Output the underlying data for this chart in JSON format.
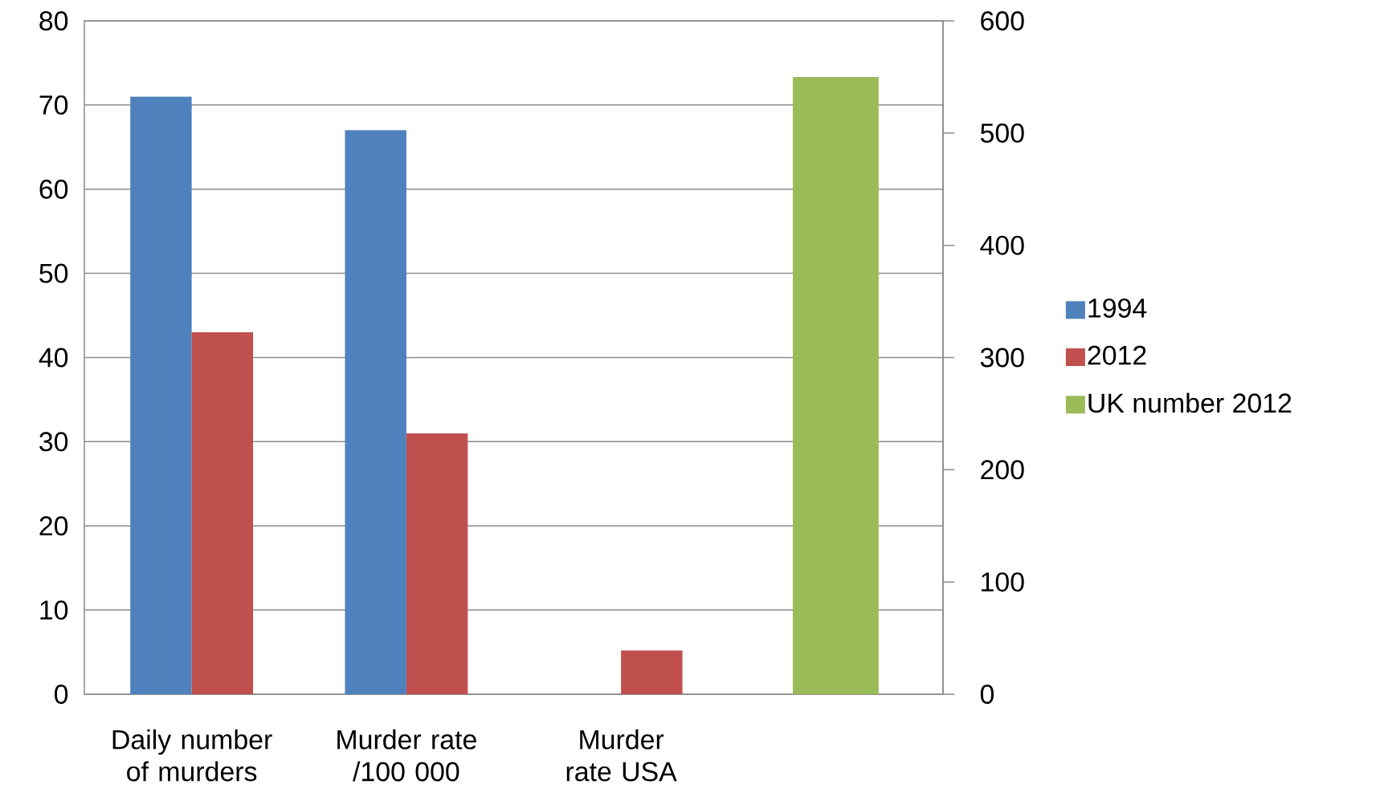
{
  "chart_data": {
    "type": "bar",
    "categories": [
      "Daily number of murders",
      "Murder rate /100 000",
      "Murder rate USA",
      null
    ],
    "series": [
      {
        "name": "1994",
        "color": "#4f81bd",
        "values": [
          71,
          67,
          null,
          null
        ]
      },
      {
        "name": "2012",
        "color": "#c0504d",
        "values": [
          43,
          31,
          5.2,
          null
        ]
      },
      {
        "name": "UK number 2012",
        "color": "#9bbb59",
        "axis": "y2",
        "values": [
          null,
          null,
          null,
          550
        ]
      }
    ],
    "ylim": [
      0,
      80
    ],
    "yticks": [
      0,
      10,
      20,
      30,
      40,
      50,
      60,
      70,
      80
    ],
    "y2lim": [
      0,
      600
    ],
    "y2ticks": [
      0,
      100,
      200,
      300,
      400,
      500,
      600
    ],
    "grid": "y",
    "legend": "right"
  }
}
